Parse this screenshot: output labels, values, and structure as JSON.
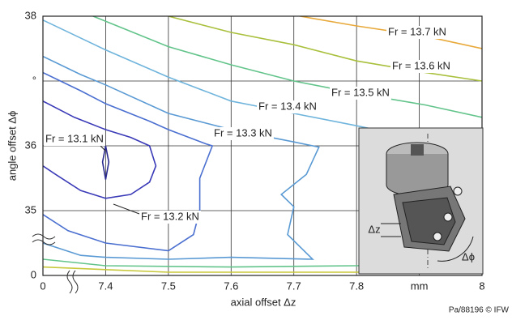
{
  "chart_data": {
    "type": "contour",
    "x_label": "axial offset Δz",
    "y_label": "angle offset Δϕ",
    "credit": "Pa/88196 © IFW",
    "xlim": [
      0,
      8.0
    ],
    "ylim": [
      0,
      38
    ],
    "axis_break": true,
    "grid": true,
    "xticks": [
      0,
      7.4,
      7.5,
      7.6,
      7.7,
      7.8,
      {
        "value": 7.9,
        "label": "mm"
      },
      8.0
    ],
    "yticks": [
      0,
      35,
      36,
      {
        "value": 37,
        "label": "°"
      },
      38
    ],
    "series": [
      {
        "name": "Fr = 13.7 kN",
        "color": "#e8a93a",
        "x": [
          7.71,
          7.8,
          7.91,
          8.0
        ],
        "values": [
          38,
          37.85,
          37.69,
          37.5
        ]
      },
      {
        "name": "Fr = 13.6 kN",
        "color": "#a8c03c",
        "x": [
          7.5,
          7.6,
          7.7,
          7.8,
          7.91,
          8.0
        ],
        "values": [
          38,
          37.75,
          37.56,
          37.31,
          37.13,
          37.0
        ]
      },
      {
        "name": "Fr = 13.5 kN",
        "color": "#62c48a",
        "x": [
          7.38,
          7.5,
          7.6,
          7.7,
          7.8,
          7.91,
          8.0
        ],
        "values": [
          38,
          37.53,
          37.25,
          37.0,
          36.81,
          36.63,
          36.44
        ]
      },
      {
        "name": "Fr = 13.4 kN",
        "color": "#6fb4dc",
        "x": [
          7.3,
          7.4,
          7.5,
          7.6,
          7.7,
          7.8,
          7.84
        ],
        "values": [
          37.94,
          37.48,
          37.06,
          36.69,
          36.5,
          36.31,
          36.23
        ]
      },
      {
        "name": "Fr = 13.3 kN",
        "color": "#5a9ad4",
        "x": [
          7.3,
          7.36,
          7.4,
          7.5,
          7.6,
          7.7,
          7.74,
          7.72,
          7.68,
          7.7,
          7.69,
          7.73,
          7.6,
          7.5,
          7.4,
          7.36,
          7.3
        ],
        "values": [
          37.38,
          37.1,
          36.94,
          36.5,
          36.25,
          36.06,
          35.98,
          35.56,
          35.25,
          35.06,
          34.63,
          34.25,
          34.28,
          34.25,
          34.28,
          34.31,
          34.5
        ]
      },
      {
        "name": "Fr = 13.2 kN",
        "color": "#4a6fd0",
        "x": [
          7.3,
          7.36,
          7.4,
          7.47,
          7.5,
          7.56,
          7.57,
          7.55,
          7.55,
          7.54,
          7.5,
          7.4,
          7.34,
          7.3
        ],
        "values": [
          37.13,
          36.85,
          36.65,
          36.38,
          36.25,
          36.03,
          36.0,
          35.5,
          35.0,
          34.63,
          34.38,
          34.5,
          34.69,
          34.94
        ]
      },
      {
        "color": "#3a3ab8",
        "x": [
          7.3,
          7.35,
          7.4,
          7.44,
          7.47,
          7.48,
          7.47,
          7.44,
          7.4,
          7.36,
          7.32,
          7.3
        ],
        "values": [
          36.69,
          36.44,
          36.25,
          36.13,
          36.0,
          35.69,
          35.44,
          35.25,
          35.19,
          35.31,
          35.56,
          35.69
        ]
      },
      {
        "name": "Fr = 13.1 kN",
        "color": "#2c2c90",
        "x": [
          7.4,
          7.405,
          7.4,
          7.395,
          7.4
        ],
        "values": [
          36.0,
          35.75,
          35.48,
          35.75,
          36.0
        ]
      },
      {
        "color": "#62c48a",
        "x": [
          7.3,
          7.4,
          7.6,
          7.8,
          8.0
        ],
        "values": [
          34.25,
          34.15,
          34.13,
          34.15,
          34.19
        ]
      },
      {
        "color": "#c8c83c",
        "x": [
          7.3,
          7.5,
          7.8,
          8.0
        ],
        "values": [
          34.13,
          34.05,
          34.05,
          34.1
        ]
      }
    ],
    "inset": {
      "labels": [
        "Δz",
        "Δϕ"
      ]
    }
  }
}
